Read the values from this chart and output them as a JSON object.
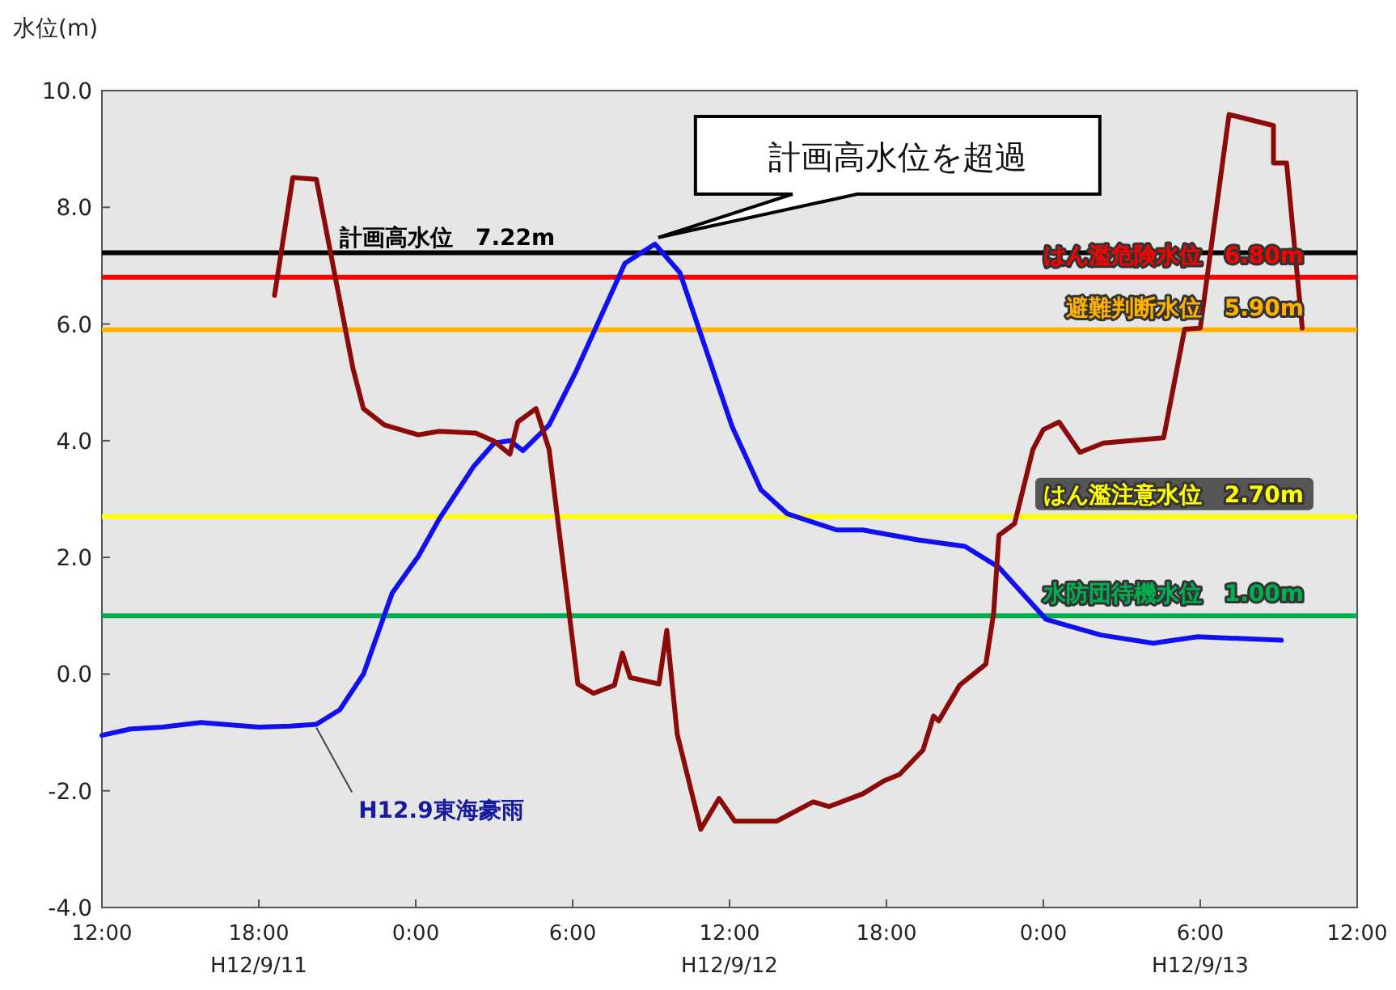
{
  "chart_data": {
    "type": "line",
    "ylabel": "水位(m)",
    "xlim": [
      "2000-09-11T12:00",
      "2000-09-13T12:00"
    ],
    "xticks": [
      {
        "value": "2000-09-11T12:00",
        "label": "12:00"
      },
      {
        "value": "2000-09-11T18:00",
        "label": "18:00\nH12/9/11"
      },
      {
        "value": "2000-09-12T00:00",
        "label": "0:00"
      },
      {
        "value": "2000-09-12T06:00",
        "label": "6:00"
      },
      {
        "value": "2000-09-12T12:00",
        "label": "12:00\nH12/9/12"
      },
      {
        "value": "2000-09-12T18:00",
        "label": "18:00"
      },
      {
        "value": "2000-09-13T00:00",
        "label": "0:00"
      },
      {
        "value": "2000-09-13T06:00",
        "label": "6:00\nH12/9/13"
      },
      {
        "value": "2000-09-13T12:00",
        "label": "12:00"
      }
    ],
    "ylim": [
      -4,
      10
    ],
    "yticks": [
      {
        "value": -4,
        "label": "-4.0"
      },
      {
        "value": -2,
        "label": "-2.0"
      },
      {
        "value": 0,
        "label": "0.0"
      },
      {
        "value": 2,
        "label": "2.0"
      },
      {
        "value": 4,
        "label": "4.0"
      },
      {
        "value": 6,
        "label": "6.0"
      },
      {
        "value": 8,
        "label": "8.0"
      },
      {
        "value": 10,
        "label": "10.0"
      }
    ],
    "grid": false,
    "legend": false,
    "marker": "none",
    "line_style": "solid",
    "series": [
      {
        "name": "H12.9東海豪雨",
        "color": "#1010f0",
        "x": [
          "2000-09-11T12:00",
          "2000-09-11T13:06",
          "2000-09-11T14:18",
          "2000-09-11T15:48",
          "2000-09-11T18:00",
          "2000-09-11T19:12",
          "2000-09-11T20:12",
          "2000-09-11T21:06",
          "2000-09-11T22:00",
          "2000-09-11T23:06",
          "2000-09-12T00:06",
          "2000-09-12T00:54",
          "2000-09-12T02:12",
          "2000-09-12T03:00",
          "2000-09-12T03:36",
          "2000-09-12T04:06",
          "2000-09-12T05:06",
          "2000-09-12T06:06",
          "2000-09-12T08:00",
          "2000-09-12T09:09",
          "2000-09-12T10:06",
          "2000-09-12T12:06",
          "2000-09-12T13:12",
          "2000-09-12T14:12",
          "2000-09-12T16:06",
          "2000-09-12T17:06",
          "2000-09-12T19:12",
          "2000-09-12T21:00",
          "2000-09-12T22:18",
          "2000-09-13T00:06",
          "2000-09-13T00:42",
          "2000-09-13T02:12",
          "2000-09-13T04:12",
          "2000-09-13T05:54",
          "2000-09-13T09:06"
        ],
        "values": [
          -1.05,
          -0.94,
          -0.91,
          -0.83,
          -0.91,
          -0.89,
          -0.86,
          -0.61,
          0.0,
          1.39,
          2.02,
          2.66,
          3.55,
          3.96,
          4.0,
          3.83,
          4.27,
          5.16,
          7.04,
          7.37,
          6.88,
          4.24,
          3.16,
          2.75,
          2.47,
          2.47,
          2.3,
          2.19,
          1.83,
          0.94,
          0.86,
          0.67,
          0.53,
          0.64,
          0.58
        ]
      },
      {
        "color": "#8b0a0a",
        "x": [
          "2000-09-11T18:36",
          "2000-09-11T19:18",
          "2000-09-11T20:12",
          "2000-09-11T21:36",
          "2000-09-11T22:00",
          "2000-09-11T22:48",
          "2000-09-12T00:06",
          "2000-09-12T00:54",
          "2000-09-12T02:18",
          "2000-09-12T03:00",
          "2000-09-12T03:36",
          "2000-09-12T03:54",
          "2000-09-12T04:36",
          "2000-09-12T05:06",
          "2000-09-12T06:12",
          "2000-09-12T06:48",
          "2000-09-12T07:36",
          "2000-09-12T07:54",
          "2000-09-12T08:12",
          "2000-09-12T09:18",
          "2000-09-12T09:36",
          "2000-09-12T10:00",
          "2000-09-12T10:54",
          "2000-09-12T11:36",
          "2000-09-12T12:12",
          "2000-09-12T13:48",
          "2000-09-12T15:12",
          "2000-09-12T15:48",
          "2000-09-12T17:06",
          "2000-09-12T17:54",
          "2000-09-12T18:30",
          "2000-09-12T19:24",
          "2000-09-12T19:48",
          "2000-09-12T20:00",
          "2000-09-12T20:48",
          "2000-09-12T21:48",
          "2000-09-12T22:06",
          "2000-09-12T22:18",
          "2000-09-12T22:54",
          "2000-09-12T23:36",
          "2000-09-13T00:00",
          "2000-09-13T00:36",
          "2000-09-13T01:24",
          "2000-09-13T02:18",
          "2000-09-13T04:36",
          "2000-09-13T05:24",
          "2000-09-13T06:00",
          "2000-09-13T07:06",
          "2000-09-13T08:48",
          "2000-09-13T08:48",
          "2000-09-13T09:18",
          "2000-09-13T09:54"
        ],
        "values": [
          6.49,
          8.51,
          8.48,
          5.24,
          4.55,
          4.27,
          4.1,
          4.16,
          4.13,
          3.99,
          3.77,
          4.32,
          4.55,
          3.85,
          -0.17,
          -0.33,
          -0.19,
          0.36,
          -0.06,
          -0.17,
          0.75,
          -1.03,
          -2.66,
          -2.13,
          -2.52,
          -2.52,
          -2.19,
          -2.27,
          -2.05,
          -1.83,
          -1.72,
          -1.3,
          -0.72,
          -0.8,
          -0.19,
          0.17,
          1.05,
          2.38,
          2.58,
          3.85,
          4.19,
          4.32,
          3.8,
          3.96,
          4.05,
          5.91,
          5.93,
          9.59,
          9.4,
          8.76,
          8.76,
          5.93
        ]
      }
    ],
    "ref_lines": [
      {
        "axis": "y",
        "value": 7.22,
        "label": "計画高水位　7.22m",
        "color": "#000000"
      },
      {
        "axis": "y",
        "value": 6.8,
        "label": "はん濫危険水位　6.80m",
        "color": "#ff0000"
      },
      {
        "axis": "y",
        "value": 5.9,
        "label": "避難判断水位　5.90m",
        "color": "#ffb000"
      },
      {
        "axis": "y",
        "value": 2.7,
        "label": "はん濫注意水位　2.70m",
        "color": "#ffff00"
      },
      {
        "axis": "y",
        "value": 1.0,
        "label": "水防団待機水位　1.00m",
        "color": "#00b050"
      }
    ],
    "annotations": [
      "計画高水位を超過"
    ]
  }
}
